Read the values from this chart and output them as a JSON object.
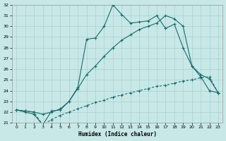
{
  "xlabel": "Humidex (Indice chaleur)",
  "bg_color": "#c8e8e8",
  "grid_color": "#a8d0d0",
  "line_color": "#1a6b6b",
  "xlim_min": -0.5,
  "xlim_max": 23.5,
  "ylim_min": 21,
  "ylim_max": 32,
  "xticks": [
    0,
    1,
    2,
    3,
    4,
    5,
    6,
    7,
    8,
    9,
    10,
    11,
    12,
    13,
    14,
    15,
    16,
    17,
    18,
    19,
    20,
    21,
    22,
    23
  ],
  "yticks": [
    21,
    22,
    23,
    24,
    25,
    26,
    27,
    28,
    29,
    30,
    31,
    32
  ],
  "line1_x": [
    0,
    1,
    2,
    3,
    4,
    5,
    6,
    7,
    8,
    9,
    10,
    11,
    12,
    13,
    14,
    15,
    16,
    17,
    18,
    19,
    20,
    21,
    22,
    23
  ],
  "line1_y": [
    22.2,
    22.0,
    21.8,
    20.8,
    22.1,
    22.2,
    23.0,
    24.3,
    28.8,
    28.9,
    30.0,
    32.0,
    31.1,
    30.3,
    30.4,
    30.5,
    31.0,
    29.8,
    30.2,
    28.0,
    26.3,
    25.3,
    24.0,
    23.8
  ],
  "line2_x": [
    0,
    1,
    2,
    3,
    4,
    5,
    6,
    7,
    8,
    9,
    10,
    11,
    12,
    13,
    14,
    15,
    16,
    17,
    18,
    19,
    20,
    21,
    22,
    23
  ],
  "line2_y": [
    22.2,
    22.1,
    22.0,
    21.8,
    22.0,
    22.3,
    23.0,
    24.2,
    25.5,
    26.3,
    27.2,
    28.0,
    28.7,
    29.2,
    29.7,
    30.0,
    30.3,
    31.0,
    30.7,
    30.0,
    26.3,
    25.5,
    25.1,
    23.8
  ],
  "line3_x": [
    0,
    1,
    2,
    3,
    4,
    5,
    6,
    7,
    8,
    9,
    10,
    11,
    12,
    13,
    14,
    15,
    16,
    17,
    18,
    19,
    20,
    21,
    22,
    23
  ],
  "line3_y": [
    22.2,
    22.1,
    22.0,
    20.8,
    21.3,
    21.7,
    22.0,
    22.3,
    22.6,
    22.9,
    23.1,
    23.4,
    23.6,
    23.8,
    24.0,
    24.2,
    24.4,
    24.5,
    24.7,
    24.9,
    25.0,
    25.2,
    25.3,
    23.8
  ]
}
